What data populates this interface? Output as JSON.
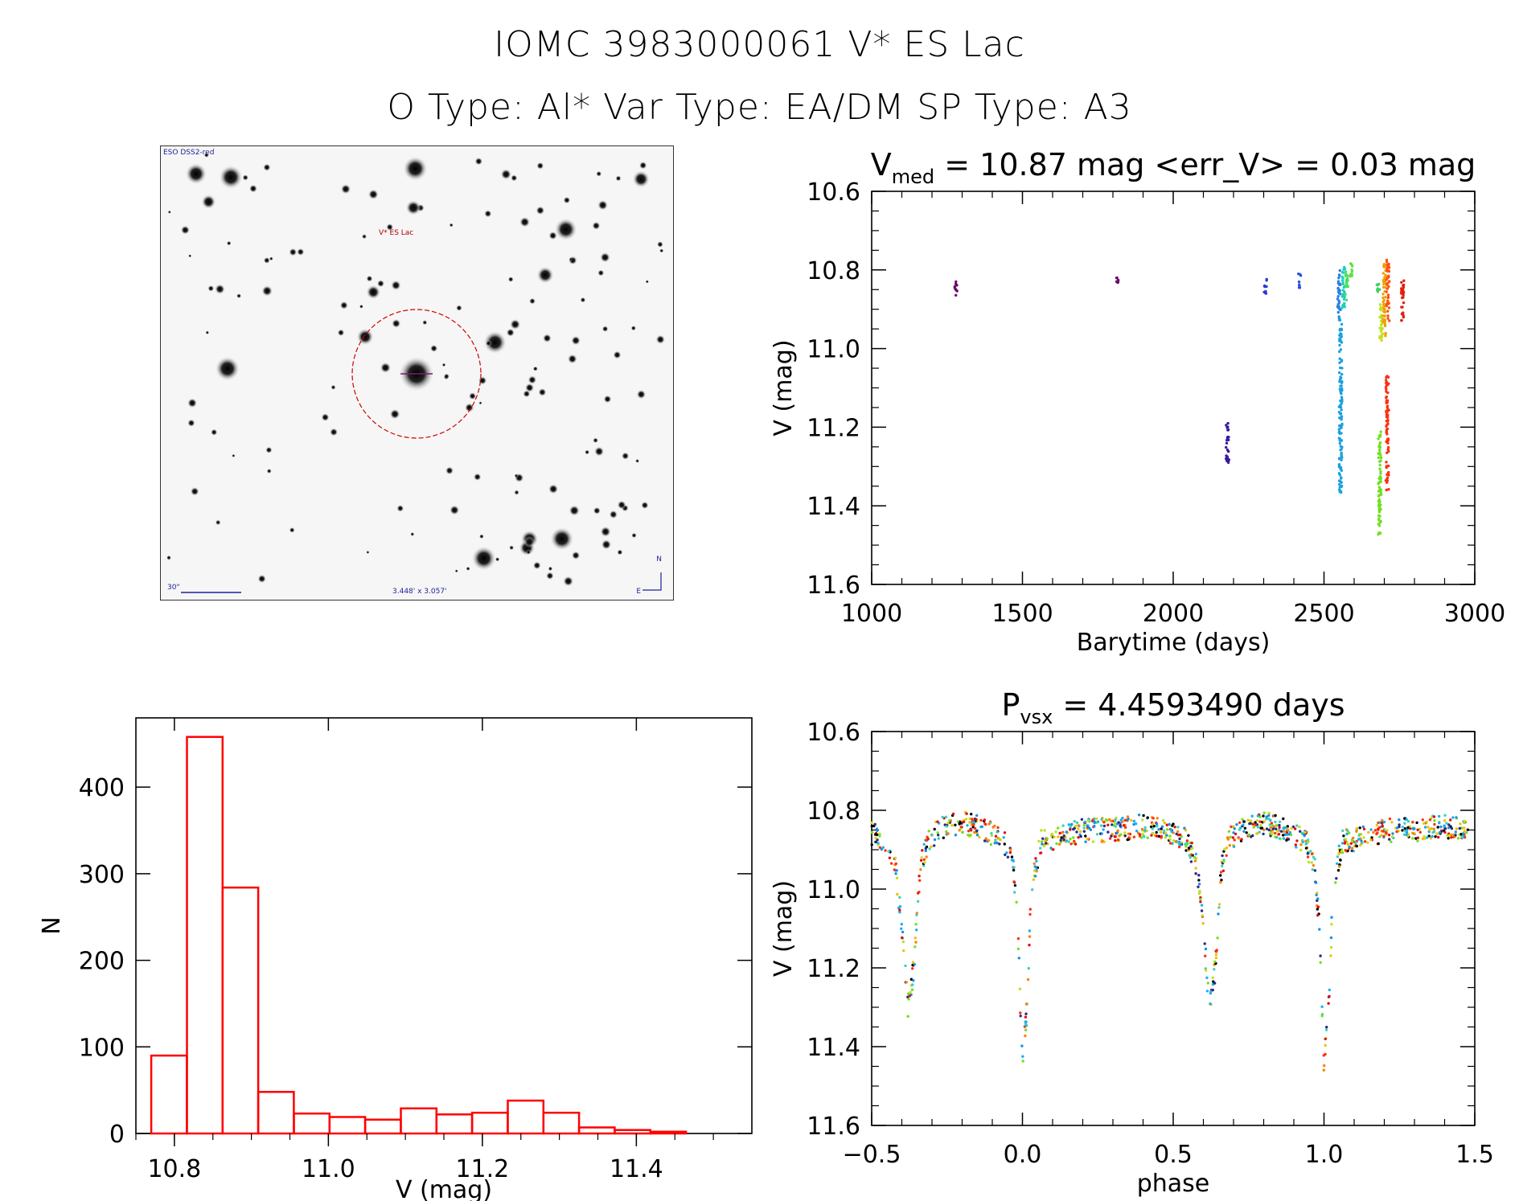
{
  "header": {
    "line1": "IOMC 3983000061   V* ES Lac",
    "line2": "O Type: Al*  Var Type: EA/DM  SP Type: A3"
  },
  "finder": {
    "survey_label": "ESO DSS2-red",
    "target_label": "V* ES Lac",
    "scale_label": "30\"",
    "fov_label": "3.448' x 3.057'",
    "north_label": "N",
    "east_label": "E"
  },
  "colors": {
    "hist_bar": "#ff0000",
    "target_circle": "#cc0000",
    "finder_text": "#1f1f99"
  },
  "chart_data": [
    {
      "id": "lightcurve",
      "type": "scatter",
      "title": "V_med = 10.87 mag <err_V> = 0.03 mag",
      "title_main": "V",
      "title_sub": "med",
      "title_rest": " = 10.87 mag <err_V> = 0.03 mag",
      "xlabel": "Barytime (days)",
      "ylabel": "V (mag)",
      "xlim": [
        1000,
        3000
      ],
      "ylim": [
        11.6,
        10.6
      ],
      "xticks": [
        1000,
        1500,
        2000,
        2500,
        3000
      ],
      "xtick_labels": [
        "1000",
        "1500",
        "2000",
        "2500",
        "3000"
      ],
      "yticks": [
        10.6,
        10.8,
        11.0,
        11.2,
        11.4,
        11.6
      ],
      "ytick_labels": [
        "10.6",
        "10.8",
        "11.0",
        "11.2",
        "11.4",
        "11.6"
      ],
      "groups": [
        {
          "x": 1280,
          "y_min": 10.83,
          "y_max": 10.87,
          "color": "#6a0a6a"
        },
        {
          "x": 1815,
          "y_min": 10.82,
          "y_max": 10.84,
          "color": "#6a0a6a"
        },
        {
          "x": 2180,
          "y_min": 11.19,
          "y_max": 11.29,
          "color": "#3a1aa0"
        },
        {
          "x": 2305,
          "y_min": 10.82,
          "y_max": 10.86,
          "color": "#2a3ad0"
        },
        {
          "x": 2420,
          "y_min": 10.81,
          "y_max": 10.85,
          "color": "#2a50e0"
        },
        {
          "x": 2550,
          "y_min": 10.8,
          "y_max": 10.92,
          "color": "#2a80e0"
        },
        {
          "x": 2555,
          "y_min": 10.92,
          "y_max": 11.37,
          "color": "#1aa0e0"
        },
        {
          "x": 2565,
          "y_min": 10.79,
          "y_max": 10.9,
          "color": "#1ad0c0"
        },
        {
          "x": 2575,
          "y_min": 10.8,
          "y_max": 10.88,
          "color": "#4ae060"
        },
        {
          "x": 2590,
          "y_min": 10.78,
          "y_max": 10.82,
          "color": "#60e040"
        },
        {
          "x": 2680,
          "y_min": 10.83,
          "y_max": 10.86,
          "color": "#40d060"
        },
        {
          "x": 2690,
          "y_min": 10.88,
          "y_max": 10.98,
          "color": "#c0e020"
        },
        {
          "x": 2685,
          "y_min": 11.21,
          "y_max": 11.48,
          "color": "#70e020"
        },
        {
          "x": 2700,
          "y_min": 10.78,
          "y_max": 10.97,
          "color": "#f0a000"
        },
        {
          "x": 2712,
          "y_min": 10.77,
          "y_max": 10.93,
          "color": "#ff5010"
        },
        {
          "x": 2710,
          "y_min": 11.07,
          "y_max": 11.36,
          "color": "#ff3010"
        },
        {
          "x": 2760,
          "y_min": 10.82,
          "y_max": 10.93,
          "color": "#e02010"
        }
      ]
    },
    {
      "id": "phased",
      "type": "scatter",
      "title": "P_vsx = 4.4593490 days",
      "title_main": "P",
      "title_sub": "vsx",
      "title_rest": " = 4.4593490 days",
      "xlabel": "phase",
      "ylabel": "V (mag)",
      "xlim": [
        -0.5,
        1.5
      ],
      "ylim": [
        11.6,
        10.6
      ],
      "xticks": [
        -0.5,
        0.0,
        0.5,
        1.0,
        1.5
      ],
      "xtick_labels": [
        "−0.5",
        "0.0",
        "0.5",
        "1.0",
        "1.5"
      ],
      "yticks": [
        10.6,
        10.8,
        11.0,
        11.2,
        11.4,
        11.6
      ],
      "ytick_labels": [
        "10.6",
        "10.8",
        "11.0",
        "11.2",
        "11.4",
        "11.6"
      ],
      "curve": [
        [
          -0.5,
          10.86
        ],
        [
          -0.45,
          10.88
        ],
        [
          -0.42,
          10.95
        ],
        [
          -0.4,
          11.1
        ],
        [
          -0.38,
          11.3
        ],
        [
          -0.36,
          11.2
        ],
        [
          -0.34,
          10.95
        ],
        [
          -0.31,
          10.87
        ],
        [
          -0.25,
          10.84
        ],
        [
          -0.2,
          10.83
        ],
        [
          -0.12,
          10.85
        ],
        [
          -0.06,
          10.88
        ],
        [
          -0.03,
          10.95
        ],
        [
          -0.015,
          11.1
        ],
        [
          0.0,
          11.45
        ],
        [
          0.015,
          11.3
        ],
        [
          0.03,
          11.0
        ],
        [
          0.06,
          10.88
        ],
        [
          0.12,
          10.87
        ],
        [
          0.2,
          10.85
        ],
        [
          0.3,
          10.85
        ],
        [
          0.4,
          10.84
        ],
        [
          0.5,
          10.86
        ],
        [
          0.55,
          10.88
        ],
        [
          0.58,
          10.95
        ],
        [
          0.6,
          11.1
        ],
        [
          0.62,
          11.3
        ],
        [
          0.64,
          11.2
        ],
        [
          0.66,
          10.95
        ],
        [
          0.69,
          10.87
        ],
        [
          0.75,
          10.84
        ],
        [
          0.8,
          10.83
        ],
        [
          0.88,
          10.85
        ],
        [
          0.94,
          10.88
        ],
        [
          0.97,
          10.95
        ],
        [
          0.985,
          11.1
        ],
        [
          1.0,
          11.45
        ],
        [
          1.015,
          11.3
        ],
        [
          1.03,
          11.0
        ],
        [
          1.06,
          10.88
        ],
        [
          1.12,
          10.87
        ],
        [
          1.2,
          10.85
        ],
        [
          1.3,
          10.85
        ],
        [
          1.4,
          10.84
        ],
        [
          1.48,
          10.85
        ]
      ],
      "palette": [
        "#1a90e0",
        "#1ab0f0",
        "#40d0c0",
        "#70e020",
        "#c0e020",
        "#f0c000",
        "#ff8000",
        "#ff3010",
        "#e01010",
        "#2a2a80",
        "#000000"
      ]
    },
    {
      "id": "histogram",
      "type": "bar",
      "title": "",
      "xlabel": "V (mag)",
      "ylabel": "N",
      "xlim": [
        10.75,
        11.55
      ],
      "ylim": [
        0,
        480
      ],
      "xticks": [
        10.8,
        11.0,
        11.2,
        11.4
      ],
      "xtick_labels": [
        "10.8",
        "11.0",
        "11.2",
        "11.4"
      ],
      "yticks": [
        0,
        100,
        200,
        300,
        400
      ],
      "ytick_labels": [
        "0",
        "100",
        "200",
        "300",
        "400"
      ],
      "bin_start": 10.77,
      "bin_width": 0.0463,
      "values": [
        90,
        458,
        284,
        48,
        23,
        19,
        16,
        29,
        22,
        24,
        38,
        24,
        7,
        4,
        2
      ]
    }
  ]
}
